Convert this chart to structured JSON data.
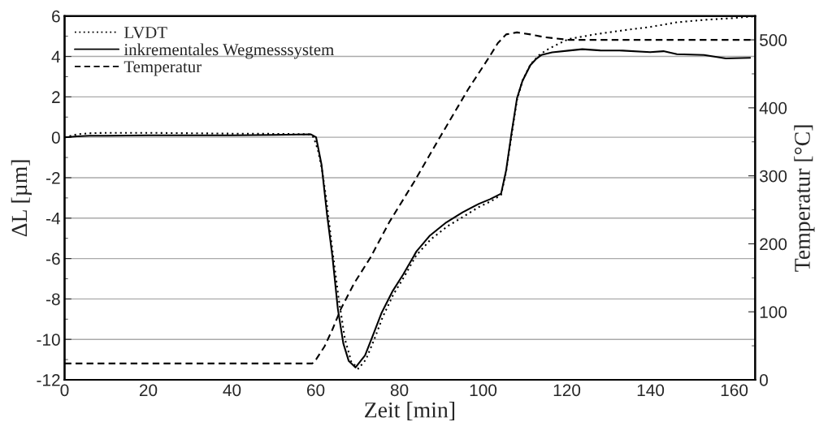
{
  "chart_data": {
    "type": "line",
    "xlabel": "Zeit [min]",
    "ylabel": "ΔL [µm]",
    "y2label": "Temperatur [°C]",
    "xlim": [
      0,
      165
    ],
    "xticks": [
      0,
      20,
      40,
      60,
      80,
      100,
      120,
      140,
      160
    ],
    "ylim": [
      -12,
      6
    ],
    "yticks": [
      -12,
      -10,
      -8,
      -6,
      -4,
      -2,
      0,
      2,
      4,
      6
    ],
    "y2lim": [
      0,
      535
    ],
    "y2ticks": [
      0,
      100,
      200,
      300,
      400,
      500
    ],
    "grid": "y",
    "legend": "top left",
    "series": [
      {
        "name": "LVDT",
        "color": "#000000",
        "line_style": "dotted",
        "x": [
          0,
          3,
          6,
          10,
          20,
          30,
          40,
          50,
          58.5,
          59.5,
          60.5,
          61.5,
          62.5,
          64,
          65.5,
          67,
          68.5,
          70.2,
          72,
          74,
          76,
          78.5,
          81,
          84,
          87.5,
          91.5,
          95.5,
          99,
          102,
          104.3,
          105.5,
          106.8,
          108.1,
          109.4,
          111.3,
          113.3,
          115,
          117.2,
          120.4,
          126.9,
          133.4,
          139.9,
          146.3,
          152.8,
          159.3,
          164.5
        ],
        "values": [
          0.0,
          0.15,
          0.2,
          0.22,
          0.22,
          0.2,
          0.18,
          0.17,
          0.15,
          0.0,
          -0.6,
          -1.6,
          -3.0,
          -5.6,
          -8.0,
          -10.0,
          -11.1,
          -11.45,
          -11.0,
          -10.0,
          -8.9,
          -7.8,
          -6.95,
          -5.85,
          -5.05,
          -4.4,
          -3.9,
          -3.45,
          -3.15,
          -2.85,
          -1.7,
          0.1,
          1.85,
          2.8,
          3.6,
          4.05,
          4.3,
          4.54,
          4.86,
          5.1,
          5.29,
          5.46,
          5.69,
          5.81,
          5.89,
          5.98
        ]
      },
      {
        "name": "inkrementales Wegmesssystem",
        "color": "#000000",
        "line_style": "solid",
        "x": [
          0,
          3,
          6,
          10,
          20,
          30,
          40,
          50,
          58.8,
          60.1,
          61.4,
          62.7,
          64.0,
          65.3,
          66.6,
          67.9,
          69.5,
          71.8,
          73.7,
          75.7,
          78.3,
          80.9,
          84.1,
          87.3,
          91.2,
          95.1,
          99.0,
          101.6,
          104.3,
          105.5,
          106.8,
          108.1,
          109.4,
          111.3,
          112.6,
          113.9,
          116.5,
          120.4,
          123.7,
          128,
          133.4,
          139.9,
          143.1,
          146.3,
          152.8,
          158,
          163.8
        ],
        "values": [
          0.0,
          0.05,
          0.08,
          0.08,
          0.1,
          0.1,
          0.1,
          0.12,
          0.15,
          0.0,
          -1.36,
          -3.8,
          -5.9,
          -8.5,
          -10.2,
          -11.07,
          -11.39,
          -10.79,
          -9.79,
          -8.71,
          -7.64,
          -6.79,
          -5.64,
          -4.86,
          -4.21,
          -3.71,
          -3.29,
          -3.07,
          -2.79,
          -1.64,
          0.21,
          1.93,
          2.79,
          3.57,
          3.86,
          4.07,
          4.2,
          4.29,
          4.36,
          4.3,
          4.29,
          4.21,
          4.26,
          4.11,
          4.07,
          3.9,
          3.93
        ]
      },
      {
        "name": "Temperatur",
        "color": "#000000",
        "line_style": "dashed",
        "axis": "y2",
        "x": [
          0,
          30,
          59.2,
          60.1,
          62.1,
          64.0,
          66.0,
          69.2,
          73.1,
          77.6,
          83.5,
          89.9,
          96.4,
          101.6,
          103.5,
          105.5,
          108.1,
          111.3,
          114.6,
          120.4,
          140,
          165
        ],
        "values": [
          24,
          24,
          24,
          30,
          49,
          74,
          104,
          142,
          180,
          232,
          291,
          359,
          427,
          476,
          495,
          508,
          511,
          508,
          504,
          500,
          500,
          500
        ]
      }
    ]
  }
}
